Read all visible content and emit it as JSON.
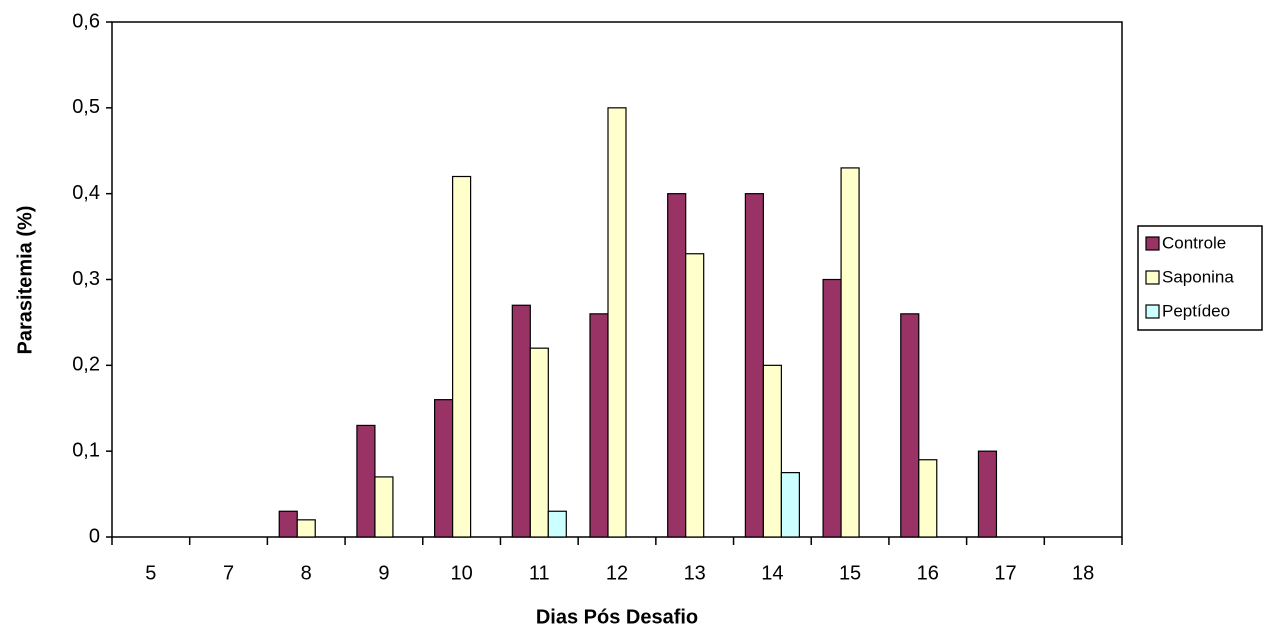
{
  "chart_data": {
    "type": "bar",
    "x_label": "Dias Pós Desafio",
    "y_label": "Parasitemia (%)",
    "categories": [
      "5",
      "7",
      "8",
      "9",
      "10",
      "11",
      "12",
      "13",
      "14",
      "15",
      "16",
      "17",
      "18"
    ],
    "series": [
      {
        "name": "Controle",
        "color": "#993366",
        "values": [
          0,
          0,
          0.03,
          0.13,
          0.16,
          0.27,
          0.26,
          0.4,
          0.4,
          0.3,
          0.26,
          0.1,
          0
        ]
      },
      {
        "name": "Saponina",
        "color": "#FFFFCC",
        "values": [
          0,
          0,
          0.02,
          0.07,
          0.42,
          0.22,
          0.5,
          0.33,
          0.2,
          0.43,
          0.09,
          0,
          0
        ]
      },
      {
        "name": "Peptídeo",
        "color": "#CCFFFF",
        "values": [
          0,
          0,
          0,
          0,
          0,
          0.03,
          0,
          0,
          0.075,
          0,
          0,
          0,
          0
        ]
      }
    ],
    "ylim": [
      0,
      0.6
    ],
    "yticks": [
      0,
      {
        "value": 0.1,
        "label": "0,1"
      },
      {
        "value": 0.2,
        "label": "0,2"
      },
      {
        "value": 0.3,
        "label": "0,3"
      },
      {
        "value": 0.4,
        "label": "0,4"
      },
      {
        "value": 0.5,
        "label": "0,5"
      },
      {
        "value": 0.6,
        "label": "0,6"
      }
    ],
    "legend": "right"
  }
}
